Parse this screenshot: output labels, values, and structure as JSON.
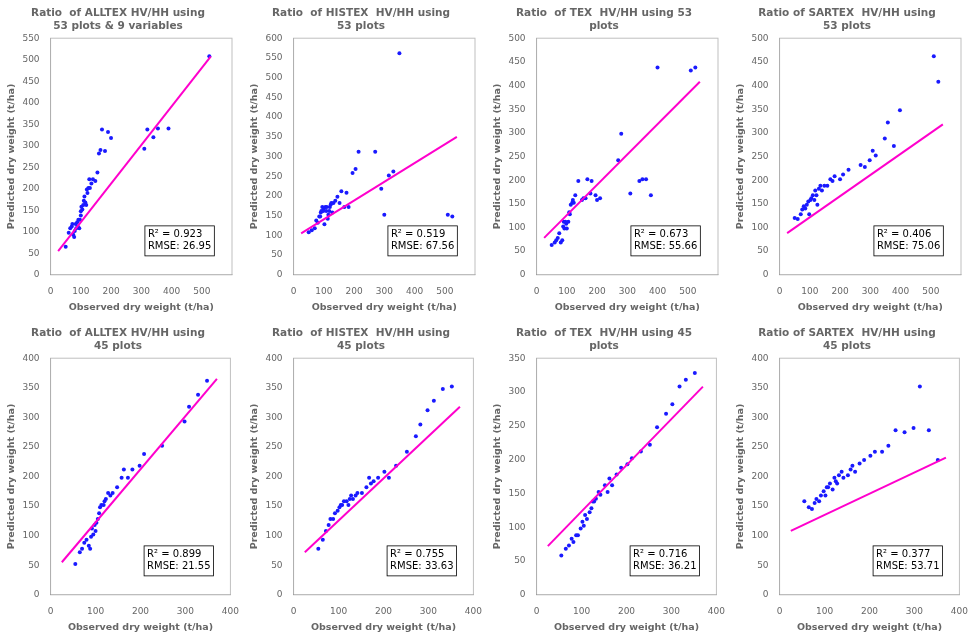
{
  "chart_data": [
    {
      "type": "scatter",
      "title": "Ratio  of ALLTEX HV/HH using\n53 plots & 9 variables",
      "xlabel": "Observed dry weight (t/ha)",
      "ylabel": "Predicted dry weight (t/ha)",
      "annotations": [
        "R² = 0.923",
        "RMSE: 26.95"
      ],
      "xlim": [
        0,
        600
      ],
      "ylim": [
        0,
        550
      ],
      "xticks": [
        0,
        100,
        200,
        300,
        400,
        500
      ],
      "yticks": [
        0,
        50,
        100,
        150,
        200,
        250,
        300,
        350,
        400,
        450,
        500,
        550
      ],
      "grid": false,
      "series": [
        {
          "type": "scatter",
          "color": "#1a1aff",
          "x": [
            50,
            60,
            65,
            70,
            72,
            75,
            78,
            80,
            83,
            85,
            88,
            90,
            92,
            95,
            97,
            100,
            100,
            102,
            105,
            108,
            110,
            112,
            115,
            118,
            120,
            122,
            125,
            128,
            130,
            135,
            140,
            148,
            155,
            160,
            165,
            170,
            180,
            190,
            200,
            310,
            320,
            340,
            355,
            390,
            525
          ],
          "values": [
            65,
            98,
            108,
            112,
            118,
            93,
            88,
            102,
            118,
            108,
            122,
            112,
            128,
            108,
            128,
            138,
            148,
            158,
            152,
            162,
            172,
            182,
            168,
            162,
            198,
            190,
            202,
            222,
            202,
            212,
            222,
            218,
            238,
            282,
            290,
            338,
            288,
            332,
            318,
            293,
            338,
            320,
            340,
            340,
            508
          ]
        },
        {
          "type": "line",
          "color": "#ff00cc",
          "x": [
            25,
            530
          ],
          "values": [
            55,
            508
          ]
        }
      ]
    },
    {
      "type": "scatter",
      "title": "Ratio  of HISTEX  HV/HH using\n53 plots",
      "xlabel": "Observed dry weight (t/ha)",
      "ylabel": "Predicted dry weight (t/ha)",
      "annotations": [
        "R² = 0.519",
        "RMSE: 67.56"
      ],
      "xlim": [
        0,
        600
      ],
      "ylim": [
        0,
        600
      ],
      "xticks": [
        0,
        100,
        200,
        300,
        400,
        500
      ],
      "yticks": [
        0,
        50,
        100,
        150,
        200,
        250,
        300,
        350,
        400,
        450,
        500,
        550,
        600
      ],
      "grid": false,
      "series": [
        {
          "type": "scatter",
          "color": "#1a1aff",
          "x": [
            50,
            60,
            70,
            75,
            80,
            85,
            88,
            90,
            92,
            95,
            98,
            100,
            102,
            105,
            108,
            110,
            113,
            115,
            118,
            120,
            123,
            125,
            128,
            132,
            138,
            145,
            152,
            158,
            168,
            175,
            182,
            195,
            205,
            215,
            270,
            290,
            300,
            315,
            330,
            350,
            510,
            525
          ],
          "values": [
            108,
            113,
            118,
            138,
            132,
            148,
            148,
            158,
            162,
            172,
            162,
            168,
            128,
            172,
            162,
            172,
            142,
            152,
            162,
            172,
            178,
            182,
            158,
            182,
            188,
            198,
            182,
            212,
            172,
            208,
            172,
            258,
            268,
            312,
            312,
            218,
            152,
            252,
            262,
            562,
            152,
            148
          ]
        },
        {
          "type": "line",
          "color": "#ff00cc",
          "x": [
            25,
            540
          ],
          "values": [
            105,
            350
          ]
        }
      ]
    },
    {
      "type": "scatter",
      "title": "Ratio  of TEX  HV/HH using 53\nplots",
      "xlabel": "Observed dry weight (t/ha)",
      "ylabel": "Predicted dry weight (t/ha)",
      "annotations": [
        "R² = 0.673",
        "RMSE: 55.66"
      ],
      "xlim": [
        0,
        600
      ],
      "ylim": [
        0,
        500
      ],
      "xticks": [
        0,
        100,
        200,
        300,
        400,
        500
      ],
      "yticks": [
        0,
        50,
        100,
        150,
        200,
        250,
        300,
        350,
        400,
        450,
        500
      ],
      "grid": false,
      "series": [
        {
          "type": "scatter",
          "color": "#1a1aff",
          "x": [
            50,
            60,
            65,
            70,
            75,
            80,
            85,
            88,
            90,
            92,
            95,
            98,
            100,
            105,
            108,
            110,
            113,
            118,
            120,
            123,
            128,
            138,
            150,
            155,
            162,
            168,
            178,
            182,
            195,
            200,
            210,
            270,
            280,
            310,
            340,
            350,
            362,
            378,
            400,
            510,
            525
          ],
          "values": [
            63,
            68,
            73,
            78,
            88,
            68,
            73,
            102,
            112,
            98,
            112,
            108,
            98,
            112,
            132,
            128,
            148,
            152,
            158,
            152,
            168,
            198,
            158,
            162,
            162,
            202,
            172,
            198,
            168,
            158,
            162,
            242,
            298,
            172,
            198,
            202,
            202,
            168,
            438,
            432,
            438
          ]
        },
        {
          "type": "line",
          "color": "#ff00cc",
          "x": [
            25,
            540
          ],
          "values": [
            78,
            408
          ]
        }
      ]
    },
    {
      "type": "scatter",
      "title": "Ratio of SARTEX  HV/HH using\n53 plots",
      "xlabel": "Observed dry weight (t/ha)",
      "ylabel": "Predicted dry weight (t/ha)",
      "annotations": [
        "R² = 0.406",
        "RMSE: 75.06"
      ],
      "xlim": [
        0,
        600
      ],
      "ylim": [
        0,
        500
      ],
      "xticks": [
        0,
        100,
        200,
        300,
        400,
        500
      ],
      "yticks": [
        0,
        50,
        100,
        150,
        200,
        250,
        300,
        350,
        400,
        450,
        500
      ],
      "grid": false,
      "series": [
        {
          "type": "scatter",
          "color": "#1a1aff",
          "x": [
            50,
            60,
            70,
            75,
            80,
            85,
            90,
            95,
            98,
            102,
            105,
            110,
            115,
            118,
            122,
            125,
            130,
            135,
            140,
            148,
            158,
            168,
            175,
            182,
            200,
            210,
            228,
            268,
            282,
            298,
            308,
            318,
            348,
            358,
            378,
            398,
            510,
            525
          ],
          "values": [
            120,
            118,
            128,
            138,
            145,
            140,
            148,
            155,
            128,
            158,
            162,
            168,
            158,
            178,
            168,
            148,
            182,
            188,
            178,
            188,
            188,
            202,
            198,
            208,
            202,
            212,
            222,
            232,
            228,
            242,
            262,
            252,
            288,
            322,
            272,
            348,
            462,
            408
          ]
        },
        {
          "type": "line",
          "color": "#ff00cc",
          "x": [
            25,
            540
          ],
          "values": [
            88,
            318
          ]
        }
      ]
    },
    {
      "type": "scatter",
      "title": "Ratio  of ALLTEX HV/HH using\n45 plots",
      "xlabel": "Observed dry weight (t/ha)",
      "ylabel": "Predicted dry weight (t/ha)",
      "annotations": [
        "R² = 0.899",
        "RMSE: 21.55"
      ],
      "xlim": [
        0,
        400
      ],
      "ylim": [
        0,
        400
      ],
      "xticks": [
        0,
        100,
        200,
        300,
        400
      ],
      "yticks": [
        0,
        50,
        100,
        150,
        200,
        250,
        300,
        350,
        400
      ],
      "grid": false,
      "series": [
        {
          "type": "scatter",
          "color": "#1a1aff",
          "x": [
            55,
            65,
            70,
            75,
            80,
            85,
            88,
            90,
            92,
            95,
            98,
            100,
            102,
            105,
            108,
            110,
            113,
            118,
            120,
            123,
            128,
            133,
            138,
            148,
            158,
            163,
            172,
            182,
            198,
            208,
            248,
            298,
            308,
            328,
            348
          ],
          "values": [
            52,
            72,
            78,
            88,
            93,
            83,
            78,
            98,
            112,
            102,
            118,
            108,
            122,
            128,
            138,
            148,
            152,
            152,
            158,
            162,
            172,
            168,
            172,
            182,
            198,
            212,
            198,
            212,
            218,
            238,
            252,
            293,
            318,
            338,
            362
          ]
        },
        {
          "type": "line",
          "color": "#ff00cc",
          "x": [
            25,
            370
          ],
          "values": [
            55,
            365
          ]
        }
      ]
    },
    {
      "type": "scatter",
      "title": "Ratio  of HISTEX  HV/HH using\n45 plots",
      "xlabel": "Observed dry weight (t/ha)",
      "ylabel": "Predicted dry weight (t/ha)",
      "annotations": [
        "R² = 0.755",
        "RMSE: 33.63"
      ],
      "xlim": [
        0,
        400
      ],
      "ylim": [
        0,
        400
      ],
      "xticks": [
        0,
        100,
        200,
        300,
        400
      ],
      "yticks": [
        0,
        50,
        100,
        150,
        200,
        250,
        300,
        350,
        400
      ],
      "grid": false,
      "series": [
        {
          "type": "scatter",
          "color": "#1a1aff",
          "x": [
            55,
            65,
            72,
            78,
            82,
            88,
            92,
            98,
            102,
            105,
            108,
            112,
            118,
            122,
            125,
            128,
            132,
            138,
            142,
            152,
            162,
            168,
            172,
            178,
            188,
            202,
            212,
            228,
            252,
            272,
            282,
            298,
            312,
            332,
            352
          ],
          "values": [
            78,
            93,
            108,
            118,
            128,
            128,
            138,
            142,
            148,
            152,
            152,
            158,
            158,
            152,
            162,
            168,
            162,
            168,
            172,
            172,
            182,
            198,
            188,
            192,
            198,
            208,
            198,
            218,
            242,
            268,
            288,
            312,
            328,
            348,
            352
          ]
        },
        {
          "type": "line",
          "color": "#ff00cc",
          "x": [
            25,
            370
          ],
          "values": [
            72,
            318
          ]
        }
      ]
    },
    {
      "type": "scatter",
      "title": "Ratio  of TEX  HV/HH using 45\nplots",
      "xlabel": "Observed dry weight (t/ha)",
      "ylabel": "Predicted dry weight (t/ha)",
      "annotations": [
        "R² = 0.716",
        "RMSE: 36.21"
      ],
      "xlim": [
        0,
        400
      ],
      "ylim": [
        0,
        350
      ],
      "xticks": [
        0,
        100,
        200,
        300,
        400
      ],
      "yticks": [
        0,
        50,
        100,
        150,
        200,
        250,
        300,
        350
      ],
      "grid": false,
      "series": [
        {
          "type": "scatter",
          "color": "#1a1aff",
          "x": [
            55,
            65,
            72,
            78,
            82,
            88,
            92,
            98,
            102,
            105,
            108,
            112,
            118,
            122,
            125,
            128,
            132,
            138,
            142,
            152,
            158,
            162,
            168,
            178,
            188,
            202,
            212,
            232,
            252,
            268,
            288,
            302,
            318,
            332,
            352
          ],
          "values": [
            58,
            68,
            73,
            83,
            78,
            88,
            88,
            98,
            108,
            102,
            118,
            112,
            122,
            128,
            138,
            138,
            142,
            152,
            148,
            162,
            152,
            172,
            162,
            178,
            188,
            193,
            202,
            212,
            222,
            248,
            268,
            282,
            308,
            318,
            328
          ]
        },
        {
          "type": "line",
          "color": "#ff00cc",
          "x": [
            25,
            370
          ],
          "values": [
            72,
            308
          ]
        }
      ]
    },
    {
      "type": "scatter",
      "title": "Ratio of SARTEX  HV/HH using\n45 plots",
      "xlabel": "Observed dry weight (t/ha)",
      "ylabel": "Predicted dry weight (t/ha)",
      "annotations": [
        "R² = 0.377",
        "RMSE: 53.71"
      ],
      "xlim": [
        0,
        400
      ],
      "ylim": [
        0,
        400
      ],
      "xticks": [
        0,
        100,
        200,
        300,
        400
      ],
      "yticks": [
        0,
        50,
        100,
        150,
        200,
        250,
        300,
        350,
        400
      ],
      "grid": false,
      "series": [
        {
          "type": "scatter",
          "color": "#1a1aff",
          "x": [
            55,
            65,
            72,
            78,
            82,
            88,
            92,
            98,
            102,
            105,
            108,
            112,
            118,
            122,
            125,
            128,
            132,
            138,
            142,
            152,
            158,
            162,
            168,
            178,
            188,
            202,
            212,
            228,
            242,
            258,
            278,
            298,
            312,
            332,
            352
          ],
          "values": [
            158,
            148,
            145,
            155,
            162,
            158,
            168,
            175,
            168,
            182,
            182,
            188,
            178,
            198,
            192,
            188,
            202,
            208,
            198,
            202,
            212,
            218,
            208,
            222,
            228,
            235,
            242,
            242,
            252,
            278,
            275,
            282,
            352,
            278,
            228
          ]
        },
        {
          "type": "line",
          "color": "#ff00cc",
          "x": [
            25,
            370
          ],
          "values": [
            108,
            232
          ]
        }
      ]
    }
  ]
}
